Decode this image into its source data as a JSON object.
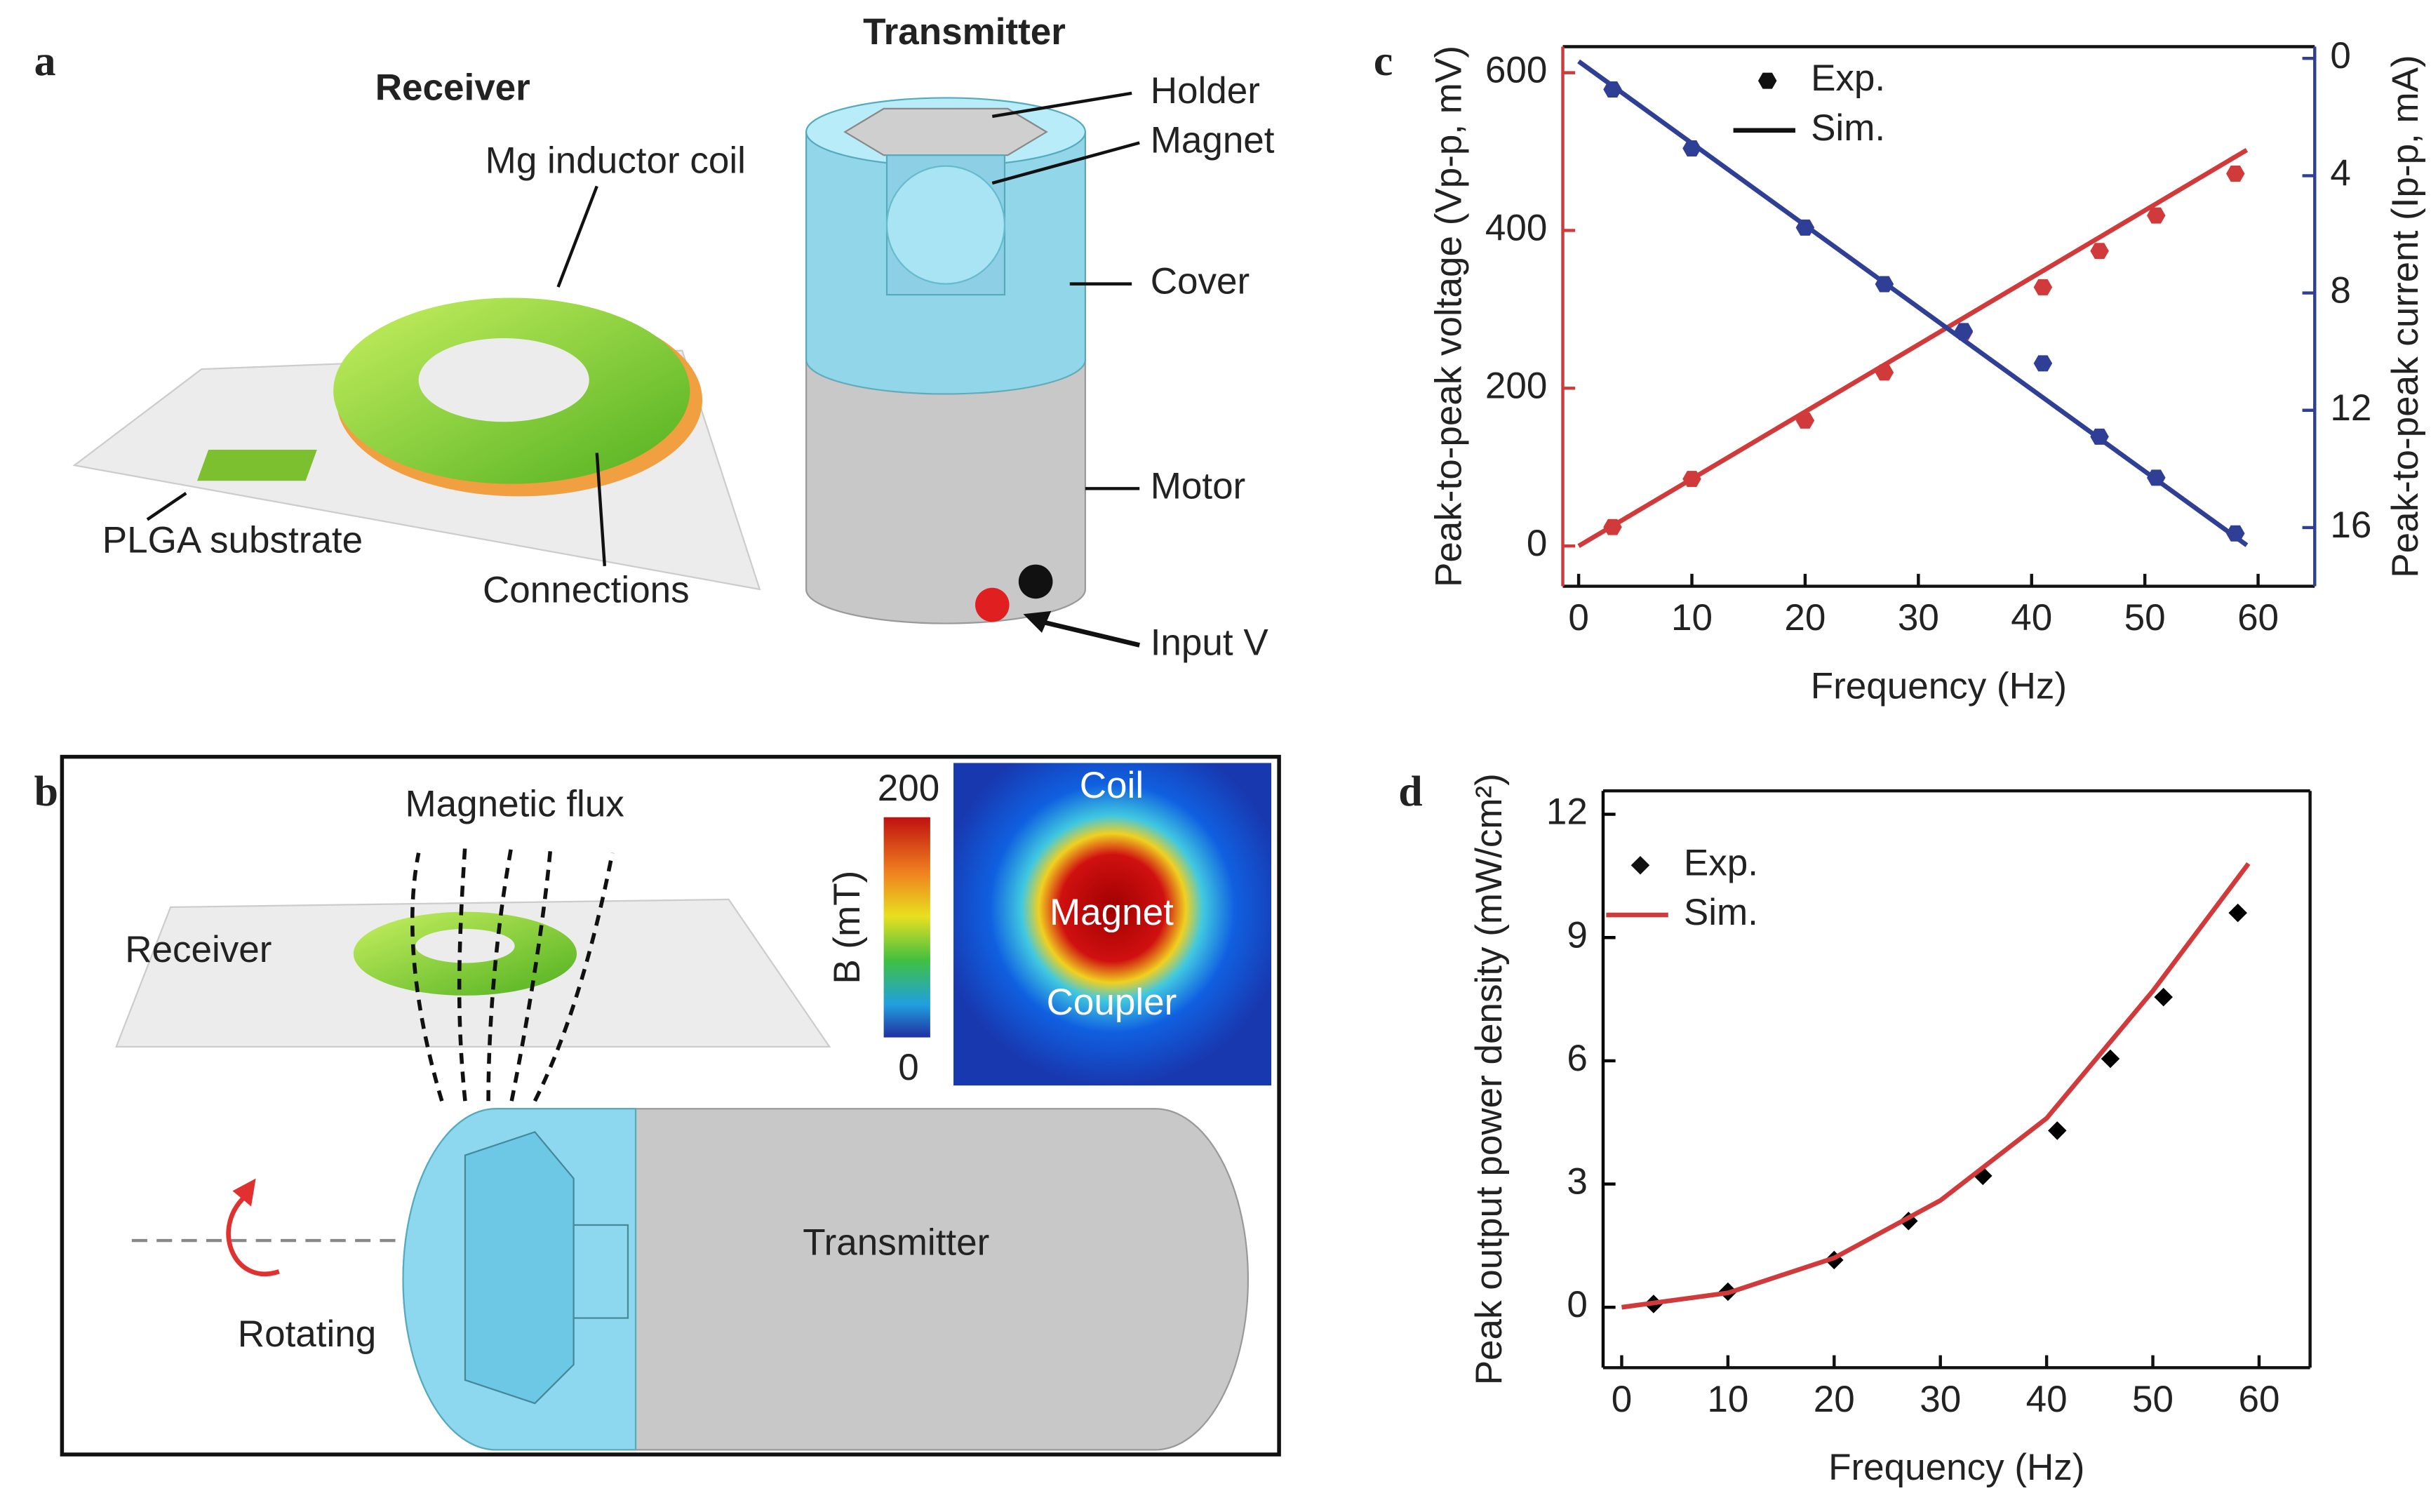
{
  "panel_labels": [
    "a",
    "b",
    "c",
    "d"
  ],
  "panel_a": {
    "receiver": "Receiver",
    "transmitter": "Transmitter",
    "coil": "Mg inductor coil",
    "substrate": "PLGA substrate",
    "connections": "Connections",
    "holder": "Holder",
    "magnet": "Magnet",
    "cover": "Cover",
    "motor": "Motor",
    "input": "Input V"
  },
  "panel_b": {
    "flux": "Magnetic flux",
    "receiver": "Receiver",
    "rotating": "Rotating",
    "transmitter": "Transmitter",
    "coil": "Coil",
    "magnet": "Magnet",
    "coupler": "Coupler",
    "colorbar": {
      "label": "B (mT)",
      "max": 200,
      "min": 0
    }
  },
  "chart_data": [
    {
      "type": "line",
      "xlabel": "Frequency (Hz)",
      "ylabel": "Peak-to-peak voltage (Vp-p, mV)",
      "y2label": "Peak-to-peak current (Ip-p, mA)",
      "xlim": [
        -1.4,
        65
      ],
      "xticks": [
        0,
        10,
        20,
        30,
        40,
        50,
        60
      ],
      "ylim": [
        -51,
        633
      ],
      "yticks": [
        0,
        200,
        400,
        600
      ],
      "y_color": "#d03a3a",
      "y2lim": [
        18.0,
        -0.4
      ],
      "y2ticks": [
        0,
        4,
        8,
        12,
        16
      ],
      "y2_color": "#2f3f95",
      "legend": [
        {
          "name": "Exp.",
          "type": "scatter"
        },
        {
          "name": "Sim.",
          "type": "line"
        }
      ],
      "marker": "hexagon",
      "series": [
        {
          "type": "scatter",
          "color": "#d03a3a",
          "x": [
            3,
            10,
            20,
            27,
            34,
            41,
            46,
            51,
            58
          ],
          "values": [
            24,
            85,
            159,
            220,
            271,
            328,
            374,
            419,
            472
          ]
        },
        {
          "type": "line",
          "color": "#d03a3a",
          "x": [
            0,
            59
          ],
          "values": [
            0,
            502
          ]
        },
        {
          "type": "scatter",
          "color": "#2f3f95",
          "axis": "y2",
          "x": [
            3,
            10,
            20,
            27,
            34,
            41,
            46,
            51,
            58
          ],
          "values": [
            1.06,
            3.07,
            5.77,
            7.7,
            9.3,
            10.4,
            12.9,
            14.3,
            16.2
          ]
        },
        {
          "type": "line",
          "color": "#2f3f95",
          "axis": "y2",
          "x": [
            0,
            59
          ],
          "values": [
            0.1,
            16.6
          ]
        }
      ]
    },
    {
      "type": "line",
      "xlabel": "Frequency (Hz)",
      "ylabel": "Peak output power density (mW/cm²)",
      "xlim": [
        -1.75,
        64.8
      ],
      "xticks": [
        0,
        10,
        20,
        30,
        40,
        50,
        60
      ],
      "ylim": [
        -1.47,
        12.57
      ],
      "yticks": [
        0,
        3,
        6,
        9,
        12
      ],
      "y_color": "#000000",
      "legend": [
        {
          "name": "Exp.",
          "type": "scatter"
        },
        {
          "name": "Sim.",
          "type": "line"
        }
      ],
      "marker": "diamond",
      "series": [
        {
          "type": "scatter",
          "color": "#000000",
          "x": [
            3,
            10,
            20,
            27,
            34,
            41,
            46,
            51,
            58
          ],
          "values": [
            0.08,
            0.38,
            1.15,
            2.1,
            3.2,
            4.3,
            6.05,
            7.55,
            9.6
          ]
        },
        {
          "type": "line",
          "color": "#d03a3a",
          "x": [
            0,
            10,
            20,
            30,
            40,
            50,
            59
          ],
          "values": [
            0,
            0.35,
            1.2,
            2.6,
            4.6,
            7.7,
            10.8
          ]
        }
      ]
    }
  ]
}
